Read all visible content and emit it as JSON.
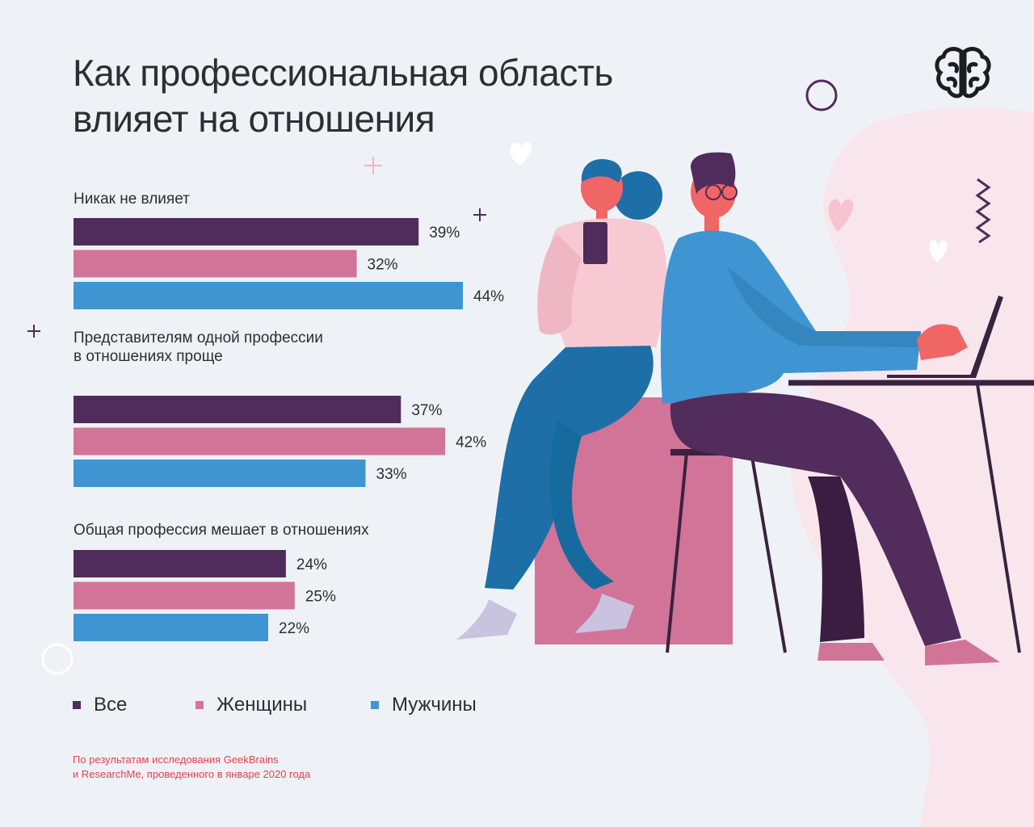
{
  "title_lines": [
    "Как профессиональная область",
    "влияет на отношения"
  ],
  "chart_data": {
    "type": "bar",
    "orientation": "horizontal",
    "value_unit": "%",
    "series_names": [
      "Все",
      "Женщины",
      "Мужчины"
    ],
    "series_colors": [
      "#4f2c5b",
      "#d27498",
      "#3f95d2"
    ],
    "groups": [
      {
        "label": "Никак не влияет",
        "values": [
          39,
          32,
          44
        ]
      },
      {
        "label": "Представителям одной профессии\nв отношениях проще",
        "values": [
          37,
          42,
          33
        ]
      },
      {
        "label": "Общая профессия мешает в отношениях",
        "values": [
          24,
          25,
          22
        ]
      }
    ],
    "xlim": [
      0,
      44
    ],
    "grid": false,
    "legend_position": "bottom"
  },
  "footnote_lines": [
    "По результатам исследования GeekBrains",
    "и ResearchMe, проведенного в январе 2020 года"
  ],
  "logo_icon": "brain-icon",
  "accent_colors": {
    "dark_purple": "#4f2c5b",
    "pink": "#d27498",
    "blue": "#3f95d2",
    "footnote": "#e5424d"
  }
}
